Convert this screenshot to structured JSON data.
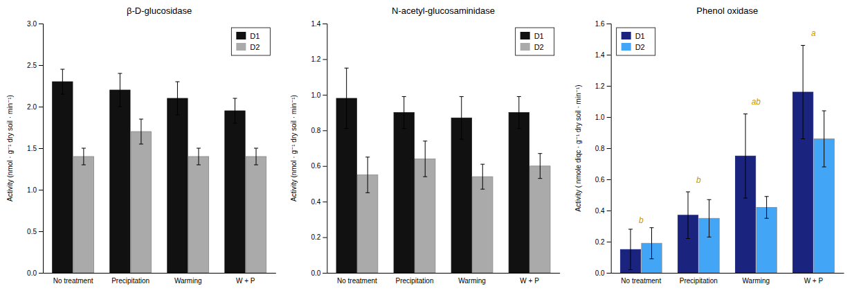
{
  "chart_data": [
    {
      "type": "bar",
      "title": "β-D-glucosidase",
      "ylabel": "Activity (nmol · g⁻¹ dry soil · min⁻¹)",
      "categories": [
        "No treatment",
        "Precipitation",
        "Warming",
        "W + P"
      ],
      "series": [
        {
          "name": "D1",
          "color": "#111111",
          "values": [
            2.3,
            2.2,
            2.1,
            1.95
          ],
          "errors": [
            0.15,
            0.2,
            0.2,
            0.15
          ]
        },
        {
          "name": "D2",
          "color": "#aaaaaa",
          "values": [
            1.4,
            1.7,
            1.4,
            1.4
          ],
          "errors": [
            0.1,
            0.15,
            0.1,
            0.1
          ]
        }
      ],
      "ylim": [
        0,
        3.0
      ],
      "yticks": [
        {
          "value": 0,
          "label": "0.0"
        },
        0.5,
        {
          "value": 1,
          "label": "1.0"
        },
        1.5,
        {
          "value": 2,
          "label": "2.0"
        },
        2.5,
        {
          "value": 3,
          "label": "3.0"
        }
      ],
      "grid": false,
      "legend": "upper right"
    },
    {
      "type": "bar",
      "title": "N-acetyl-glucosaminidase",
      "ylabel": "Activity (nmol · g⁻¹ dry soil · min⁻¹)",
      "categories": [
        "No treatment",
        "Precipitation",
        "Warming",
        "W + P"
      ],
      "series": [
        {
          "name": "D1",
          "color": "#111111",
          "values": [
            0.98,
            0.9,
            0.87,
            0.9
          ],
          "errors": [
            0.17,
            0.09,
            0.12,
            0.09
          ]
        },
        {
          "name": "D2",
          "color": "#aaaaaa",
          "values": [
            0.55,
            0.64,
            0.54,
            0.6
          ],
          "errors": [
            0.1,
            0.1,
            0.07,
            0.07
          ]
        }
      ],
      "ylim": [
        0,
        1.4
      ],
      "yticks": [
        {
          "value": 0,
          "label": "0.0"
        },
        0.2,
        0.4,
        0.6,
        0.8,
        {
          "value": 1,
          "label": "1.0"
        },
        1.2,
        1.4
      ],
      "grid": false,
      "legend": "upper right"
    },
    {
      "type": "bar",
      "title": "Phenol oxidase",
      "ylabel": "Activity ( nmole diqc · g⁻¹ dry soil · min⁻¹)",
      "categories": [
        "No treatment",
        "Precipitation",
        "Warming",
        "W + P"
      ],
      "series": [
        {
          "name": "D1",
          "color": "#1a237e",
          "values": [
            0.15,
            0.37,
            0.75,
            1.16
          ],
          "errors": [
            0.13,
            0.15,
            0.27,
            0.3
          ]
        },
        {
          "name": "D2",
          "color": "#42a5f5",
          "values": [
            0.19,
            0.35,
            0.42,
            0.86
          ],
          "errors": [
            0.1,
            0.12,
            0.07,
            0.18
          ]
        }
      ],
      "ylim": [
        0,
        1.6
      ],
      "yticks": [
        {
          "value": 0,
          "label": "0.0"
        },
        0.2,
        0.4,
        0.6,
        0.8,
        {
          "value": 1,
          "label": "1.0"
        },
        1.2,
        1.4,
        1.6
      ],
      "grid": false,
      "legend": "upper left",
      "annotations": [
        {
          "text": "b",
          "x": "No treatment",
          "y": 0.32,
          "color": "#cc9900"
        },
        {
          "text": "b",
          "x": "Precipitation",
          "y": 0.58,
          "color": "#cc9900"
        },
        {
          "text": "ab",
          "x": "Warming",
          "y": 1.08,
          "color": "#cc9900"
        },
        {
          "text": "a",
          "x": "W + P",
          "y": 1.52,
          "color": "#cc9900"
        }
      ]
    }
  ]
}
